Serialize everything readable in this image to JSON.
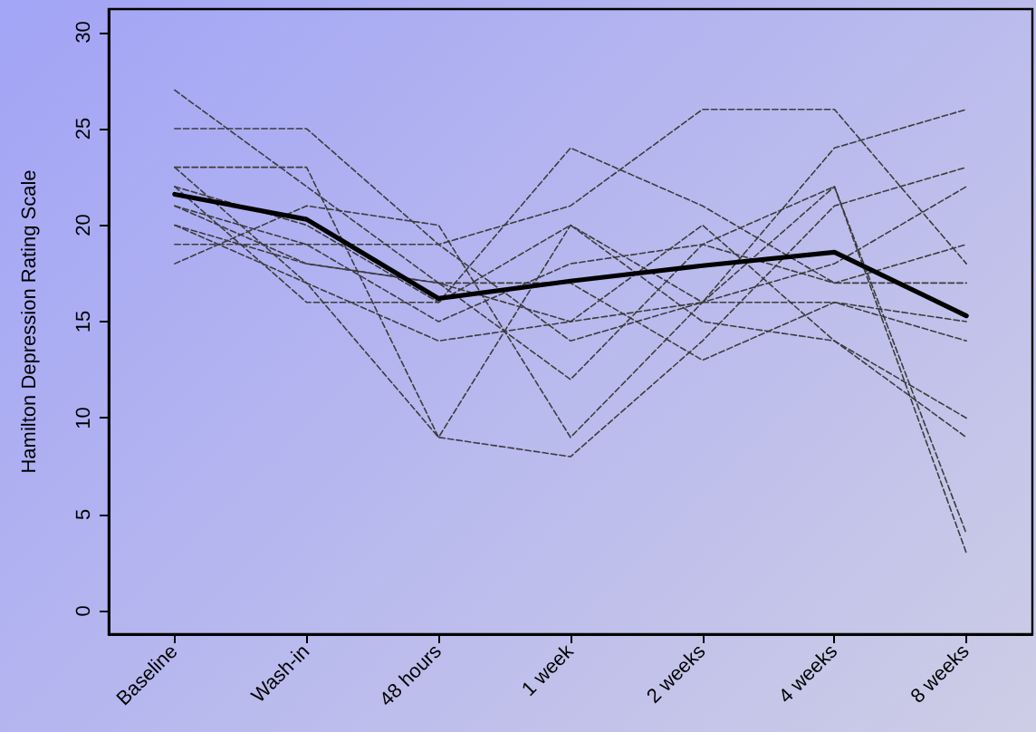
{
  "chart_data": {
    "type": "line",
    "ylabel": "Hamilton Depression Rating Scale",
    "categories": [
      "Baseline",
      "Wash-in",
      "48 hours",
      "1 week",
      "2 weeks",
      "4 weeks",
      "8 weeks"
    ],
    "ylim": [
      -1.2,
      31.2
    ],
    "yticks": [
      0,
      5,
      10,
      15,
      20,
      25,
      30
    ],
    "grid": false,
    "marker": "none",
    "series": [
      {
        "color": "#3c3c3c",
        "line_style": "dashed",
        "values": [
          25,
          25,
          19,
          21,
          26,
          26,
          18
        ]
      },
      {
        "color": "#3c3c3c",
        "line_style": "dashed",
        "values": [
          27,
          22,
          17,
          15,
          16,
          24,
          26
        ]
      },
      {
        "color": "#3c3c3c",
        "line_style": "dashed",
        "values": [
          23,
          23,
          9,
          20,
          16,
          22,
          4
        ]
      },
      {
        "color": "#3c3c3c",
        "line_style": "dashed",
        "values": [
          22,
          20,
          16,
          24,
          21,
          17,
          17
        ]
      },
      {
        "color": "#3c3c3c",
        "line_style": "dashed",
        "values": [
          21,
          18,
          17,
          12,
          19,
          22,
          3
        ]
      },
      {
        "color": "#3c3c3c",
        "line_style": "dashed",
        "values": [
          20,
          17,
          9,
          8,
          14,
          21,
          23
        ]
      },
      {
        "color": "#3c3c3c",
        "line_style": "dashed",
        "values": [
          19,
          19,
          19,
          14,
          16,
          16,
          15
        ]
      },
      {
        "color": "#3c3c3c",
        "line_style": "dashed",
        "values": [
          18,
          21,
          20,
          9,
          16,
          18,
          22
        ]
      },
      {
        "color": "#3c3c3c",
        "line_style": "dashed",
        "values": [
          23,
          17,
          14,
          15,
          20,
          14,
          10
        ]
      },
      {
        "color": "#3c3c3c",
        "line_style": "dashed",
        "values": [
          22,
          16,
          16,
          20,
          15,
          14,
          9
        ]
      },
      {
        "color": "#3c3c3c",
        "line_style": "dashed",
        "values": [
          20,
          18,
          17,
          17,
          13,
          16,
          14
        ]
      },
      {
        "color": "#3c3c3c",
        "line_style": "dashed",
        "values": [
          21,
          19,
          15,
          18,
          19,
          17,
          19
        ]
      },
      {
        "color": "#000000",
        "line_style": "solid",
        "values": [
          21.6,
          20.3,
          16.2,
          17.1,
          17.9,
          18.6,
          15.3
        ]
      }
    ]
  }
}
